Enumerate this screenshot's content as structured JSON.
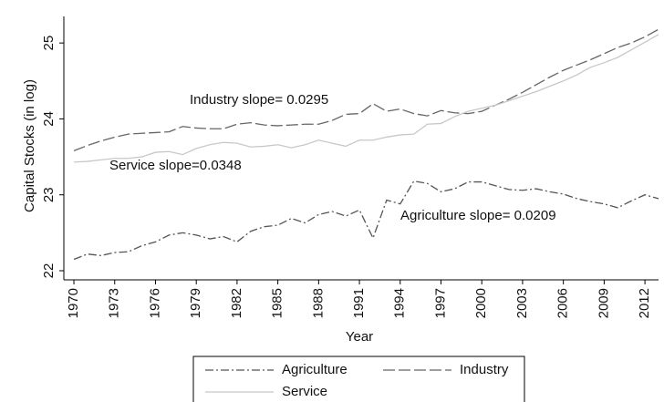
{
  "chart_data": {
    "type": "line",
    "x": [
      1970,
      1971,
      1972,
      1973,
      1974,
      1975,
      1976,
      1977,
      1978,
      1979,
      1980,
      1981,
      1982,
      1983,
      1984,
      1985,
      1986,
      1987,
      1988,
      1989,
      1990,
      1991,
      1992,
      1993,
      1994,
      1995,
      1996,
      1997,
      1998,
      1999,
      2000,
      2001,
      2002,
      2003,
      2004,
      2005,
      2006,
      2007,
      2008,
      2009,
      2010,
      2011,
      2012,
      2013
    ],
    "series": [
      {
        "name": "Agriculture",
        "color": "#555555",
        "style": "dash-dot",
        "values": [
          22.15,
          22.22,
          22.2,
          22.24,
          22.25,
          22.33,
          22.38,
          22.47,
          22.5,
          22.47,
          22.42,
          22.45,
          22.38,
          22.52,
          22.58,
          22.6,
          22.69,
          22.63,
          22.74,
          22.78,
          22.72,
          22.8,
          22.43,
          22.93,
          22.88,
          23.18,
          23.15,
          23.04,
          23.08,
          23.17,
          23.17,
          23.12,
          23.07,
          23.06,
          23.08,
          23.04,
          23.01,
          22.95,
          22.91,
          22.88,
          22.83,
          22.92,
          23.0,
          22.95
        ]
      },
      {
        "name": "Industry",
        "color": "#666666",
        "style": "dash",
        "values": [
          23.58,
          23.65,
          23.71,
          23.76,
          23.8,
          23.81,
          23.82,
          23.83,
          23.9,
          23.88,
          23.87,
          23.87,
          23.93,
          23.95,
          23.92,
          23.91,
          23.92,
          23.93,
          23.93,
          23.98,
          24.06,
          24.07,
          24.2,
          24.1,
          24.13,
          24.07,
          24.04,
          24.11,
          24.08,
          24.07,
          24.1,
          24.18,
          24.26,
          24.35,
          24.45,
          24.55,
          24.64,
          24.71,
          24.78,
          24.86,
          24.94,
          25.0,
          25.08,
          25.18
        ]
      },
      {
        "name": "Service",
        "color": "#c8c8c8",
        "style": "solid",
        "values": [
          23.43,
          23.44,
          23.46,
          23.48,
          23.48,
          23.5,
          23.56,
          23.57,
          23.53,
          23.61,
          23.66,
          23.69,
          23.68,
          23.63,
          23.64,
          23.66,
          23.62,
          23.66,
          23.72,
          23.68,
          23.64,
          23.72,
          23.72,
          23.76,
          23.79,
          23.8,
          23.93,
          23.94,
          24.03,
          24.1,
          24.14,
          24.18,
          24.24,
          24.3,
          24.36,
          24.43,
          24.5,
          24.58,
          24.68,
          24.74,
          24.81,
          24.91,
          25.01,
          25.11
        ]
      }
    ],
    "xlabel": "Year",
    "ylabel": "Capital Stocks (in log)",
    "xlim": [
      1969.26,
      2013.0
    ],
    "xticks": [
      1970,
      1973,
      1976,
      1979,
      1982,
      1985,
      1988,
      1991,
      1994,
      1997,
      2000,
      2003,
      2006,
      2009,
      2012
    ],
    "ylim": [
      21.88,
      25.35
    ],
    "yticks": [
      22,
      23,
      24,
      25
    ],
    "annotations": [
      "Industry slope= 0.0295",
      "Service slope=0.0348",
      "Agriculture slope= 0.0209"
    ],
    "legend": "bottom"
  }
}
